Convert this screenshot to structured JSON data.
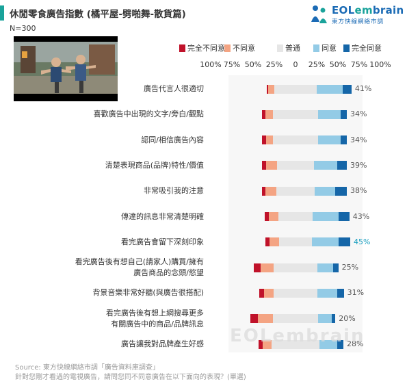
{
  "header": {
    "title": "休閒零食廣告指數 (橘平屋-劈啪舞-散貨篇)",
    "sample_size": "N=300"
  },
  "logo": {
    "word_prefix": "EOL",
    "word_em": "em",
    "word_suffix": "brain",
    "subtitle": "東方快線網絡市調",
    "icon": "figures-icon"
  },
  "thumbnail": {
    "icon": "video-still-image"
  },
  "legend": [
    {
      "label": "完全不同意",
      "color": "#c0122a"
    },
    {
      "label": "不同意",
      "color": "#f4a483"
    },
    {
      "label": "普通",
      "color": "#e6e6e6"
    },
    {
      "label": "同意",
      "color": "#93cbe6"
    },
    {
      "label": "完全同意",
      "color": "#1566a8"
    }
  ],
  "axis_ticks": [
    "100%",
    "75%",
    "50%",
    "25%",
    "0",
    "25%",
    "50%",
    "75%",
    "100%"
  ],
  "chart_data": {
    "type": "bar",
    "subtype": "diverging-stacked-horizontal",
    "series_names": [
      "完全不同意",
      "不同意",
      "普通",
      "同意",
      "完全同意"
    ],
    "series_colors": [
      "#c0122a",
      "#f4a483",
      "#e6e6e6",
      "#93cbe6",
      "#1566a8"
    ],
    "xlim": [
      -100,
      100
    ],
    "categories": [
      {
        "label": [
          "廣告代言人很適切"
        ],
        "strongly_disagree": 2,
        "disagree": 7,
        "neutral": 50,
        "agree": 31,
        "strongly_agree": 10,
        "top2": "41%"
      },
      {
        "label": [
          "喜歡廣告中出現的文字/旁白/觀點"
        ],
        "strongly_disagree": 4,
        "disagree": 9,
        "neutral": 53,
        "agree": 27,
        "strongly_agree": 7,
        "top2": "34%"
      },
      {
        "label": [
          "認同/相信廣告內容"
        ],
        "strongly_disagree": 5,
        "disagree": 8,
        "neutral": 53,
        "agree": 27,
        "strongly_agree": 7,
        "top2": "34%"
      },
      {
        "label": [
          "清楚表現商品(品牌)特性/價值"
        ],
        "strongly_disagree": 5,
        "disagree": 13,
        "neutral": 43,
        "agree": 28,
        "strongly_agree": 11,
        "top2": "39%"
      },
      {
        "label": [
          "非常吸引我的注意"
        ],
        "strongly_disagree": 4,
        "disagree": 13,
        "neutral": 45,
        "agree": 24,
        "strongly_agree": 14,
        "top2": "38%"
      },
      {
        "label": [
          "傳達的訊息非常清楚明確"
        ],
        "strongly_disagree": 5,
        "disagree": 11,
        "neutral": 41,
        "agree": 30,
        "strongly_agree": 13,
        "top2": "43%"
      },
      {
        "label": [
          "看完廣告會留下深刻印象"
        ],
        "strongly_disagree": 5,
        "disagree": 11,
        "neutral": 39,
        "agree": 31,
        "strongly_agree": 14,
        "top2": "45%",
        "highlight": true
      },
      {
        "label": [
          "看完廣告後有想自己(請家人)購買/擁有",
          "廣告商品的念頭/慾望"
        ],
        "strongly_disagree": 8,
        "disagree": 16,
        "neutral": 51,
        "agree": 19,
        "strongly_agree": 6,
        "top2": "25%"
      },
      {
        "label": [
          "背景音樂非常好聽(與廣告很搭配)"
        ],
        "strongly_disagree": 6,
        "disagree": 11,
        "neutral": 52,
        "agree": 23,
        "strongly_agree": 8,
        "top2": "31%"
      },
      {
        "label": [
          "看完廣告後有想上網搜尋更多",
          "有關廣告中的商品/品牌訊息"
        ],
        "strongly_disagree": 9,
        "disagree": 17,
        "neutral": 54,
        "agree": 16,
        "strongly_agree": 4,
        "top2": "20%"
      },
      {
        "label": [
          "廣告讓我對品牌產生好感"
        ],
        "strongly_disagree": 5,
        "disagree": 10,
        "neutral": 57,
        "agree": 21,
        "strongly_agree": 7,
        "top2": "28%"
      }
    ]
  },
  "watermark": "EOLembrain",
  "source": {
    "line1": "Source: 東方快線網絡市調「廣告資料庫調查」",
    "line2": "針對您剛才看過的電視廣告，請問您同不同意廣告在以下面向的表現？(單選)"
  }
}
